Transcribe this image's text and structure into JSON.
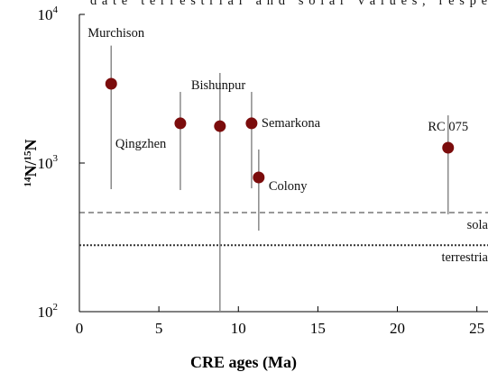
{
  "chart_data": {
    "type": "scatter",
    "caption_fragment": "date terrestrial and solar values, respe",
    "xlabel": "CRE ages (Ma)",
    "ylabel": [
      "14",
      "N/",
      "15",
      "N"
    ],
    "log_y": true,
    "xlim": [
      0,
      25.7
    ],
    "ylim": [
      100,
      10000
    ],
    "xticks": [
      0,
      5,
      10,
      15,
      20,
      25
    ],
    "yticks": [
      {
        "value": 100,
        "label": "10",
        "exponent": "2"
      },
      {
        "value": 1000,
        "label": "10",
        "exponent": "3"
      },
      {
        "value": 10000,
        "label": "10",
        "exponent": "4"
      }
    ],
    "color": "#7b0c0c",
    "error_color": "#8a8a8a",
    "names": [
      "Murchison",
      "Qingzhen",
      "Bishunpur",
      "Semarkona",
      "Colony",
      "RC 075"
    ],
    "x": [
      2.0,
      6.35,
      8.84,
      10.83,
      11.28,
      23.19
    ],
    "values": [
      3415,
      1850,
      1770,
      1850,
      800,
      1268
    ],
    "lower": [
      667,
      658,
      100,
      676,
      351,
      452
    ],
    "upper": [
      6170,
      3010,
      4040,
      3010,
      1233,
      2094
    ],
    "reference_lines": [
      {
        "label": "sola",
        "value": 464,
        "style": "dashed"
      },
      {
        "label": "terrestria",
        "value": 280,
        "style": "dotted"
      }
    ]
  }
}
